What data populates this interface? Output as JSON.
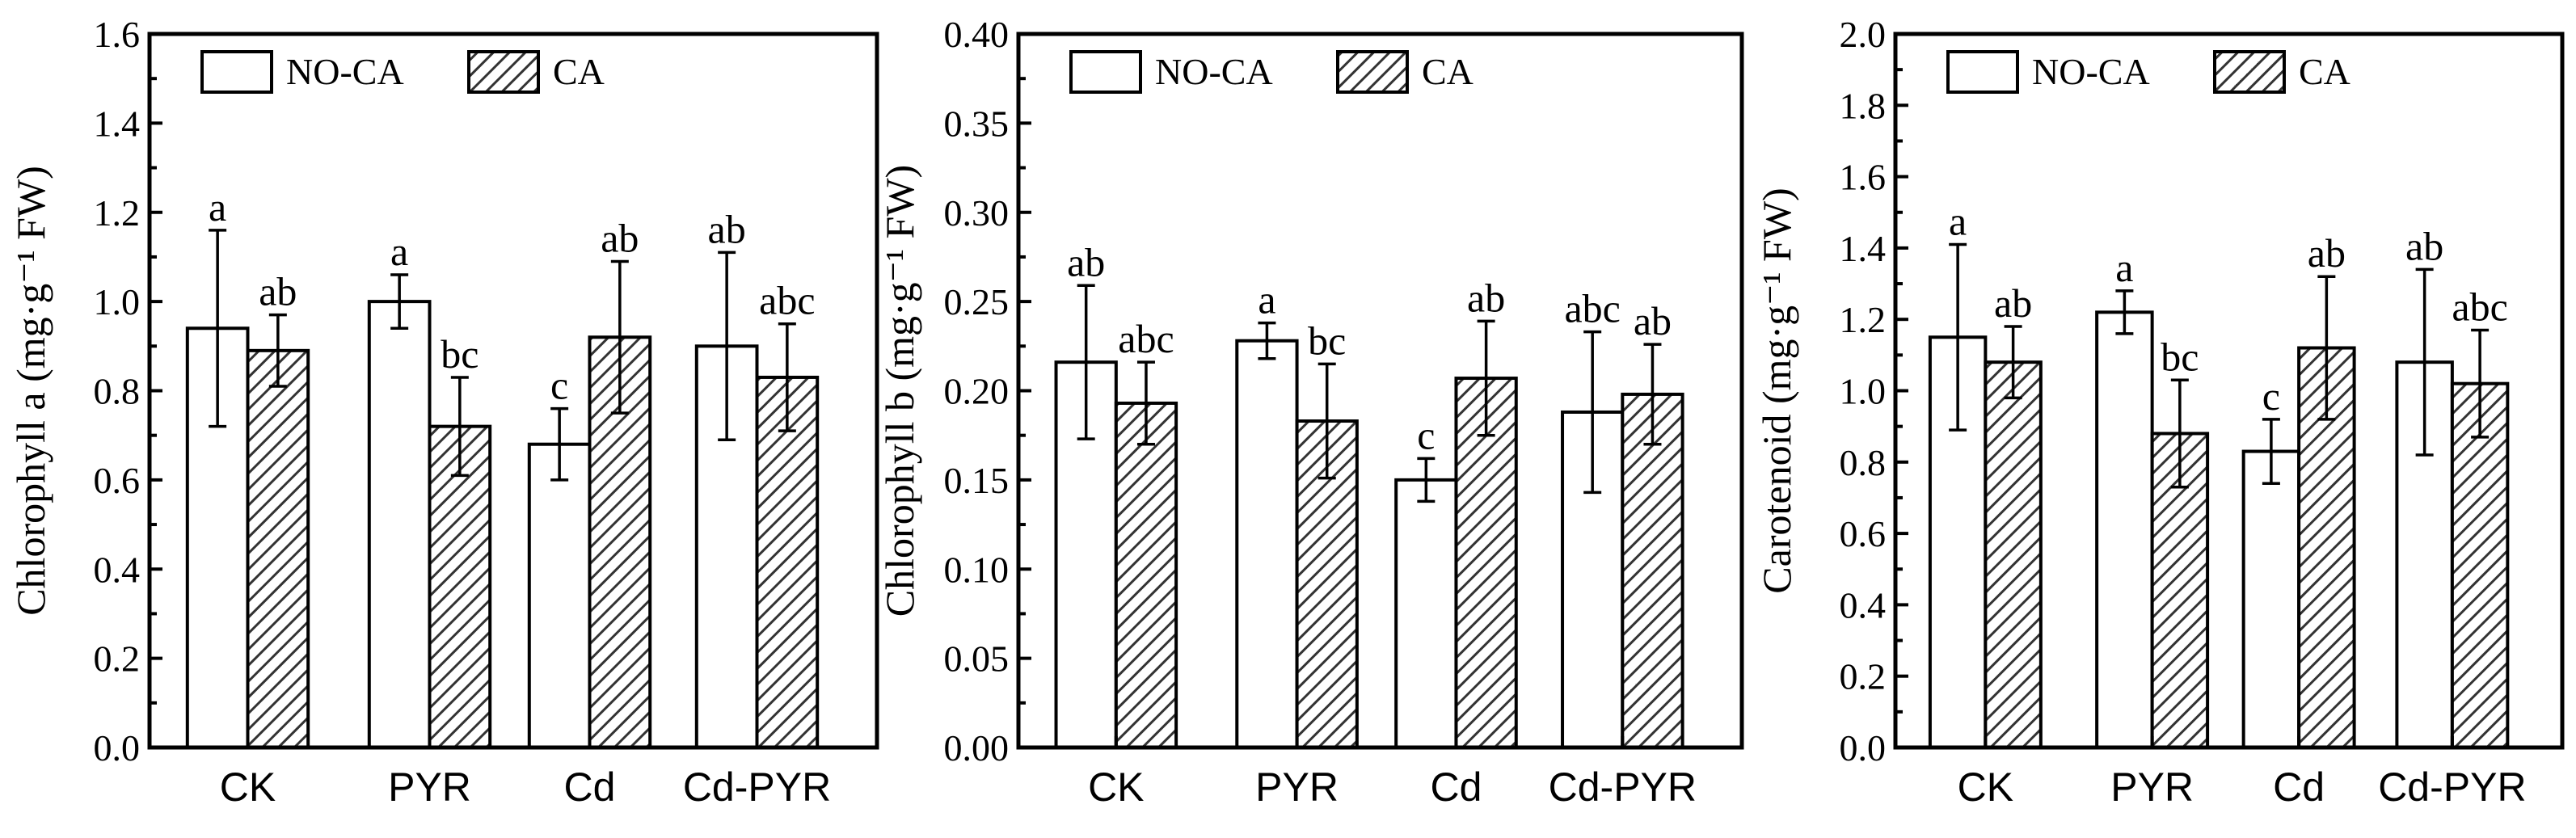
{
  "chart_data": [
    {
      "type": "bar",
      "ylabel": "Chlorophyll a (mg·g⁻¹ FW)",
      "ylim": [
        0,
        1.6
      ],
      "yticks": [
        "0.0",
        "0.2",
        "0.4",
        "0.6",
        "0.8",
        "1.0",
        "1.2",
        "1.4",
        "1.6"
      ],
      "categories": [
        "CK",
        "PYR",
        "Cd",
        "Cd-PYR"
      ],
      "legend": {
        "placement": "top-left",
        "entries": [
          "NO-CA",
          "CA"
        ]
      },
      "series": [
        {
          "name": "NO-CA",
          "values": [
            0.94,
            1.0,
            0.68,
            0.9
          ],
          "errors": [
            0.22,
            0.06,
            0.08,
            0.21
          ],
          "letters": [
            "a",
            "a",
            "c",
            "ab"
          ]
        },
        {
          "name": "CA",
          "values": [
            0.89,
            0.72,
            0.92,
            0.83
          ],
          "errors": [
            0.08,
            0.11,
            0.17,
            0.12
          ],
          "letters": [
            "ab",
            "bc",
            "ab",
            "abc"
          ]
        }
      ]
    },
    {
      "type": "bar",
      "ylabel": "Chlorophyll b (mg·g⁻¹ FW)",
      "ylim": [
        0,
        0.4
      ],
      "yticks": [
        "0.00",
        "0.05",
        "0.10",
        "0.15",
        "0.20",
        "0.25",
        "0.30",
        "0.35",
        "0.40"
      ],
      "categories": [
        "CK",
        "PYR",
        "Cd",
        "Cd-PYR"
      ],
      "legend": {
        "placement": "top-left",
        "entries": [
          "NO-CA",
          "CA"
        ]
      },
      "series": [
        {
          "name": "NO-CA",
          "values": [
            0.216,
            0.228,
            0.15,
            0.188
          ],
          "errors": [
            0.043,
            0.01,
            0.012,
            0.045
          ],
          "letters": [
            "ab",
            "a",
            "c",
            "abc"
          ]
        },
        {
          "name": "CA",
          "values": [
            0.193,
            0.183,
            0.207,
            0.198
          ],
          "errors": [
            0.023,
            0.032,
            0.032,
            0.028
          ],
          "letters": [
            "abc",
            "bc",
            "ab",
            "ab"
          ]
        }
      ]
    },
    {
      "type": "bar",
      "ylabel": "Carotenoid (mg·g⁻¹ FW)",
      "ylim": [
        0,
        2.0
      ],
      "yticks": [
        "0.0",
        "0.2",
        "0.4",
        "0.6",
        "0.8",
        "1.0",
        "1.2",
        "1.4",
        "1.6",
        "1.8",
        "2.0"
      ],
      "categories": [
        "CK",
        "PYR",
        "Cd",
        "Cd-PYR"
      ],
      "legend": {
        "placement": "top-left",
        "entries": [
          "NO-CA",
          "CA"
        ]
      },
      "series": [
        {
          "name": "NO-CA",
          "values": [
            1.15,
            1.22,
            0.83,
            1.08
          ],
          "errors": [
            0.26,
            0.06,
            0.09,
            0.26
          ],
          "letters": [
            "a",
            "a",
            "c",
            "ab"
          ]
        },
        {
          "name": "CA",
          "values": [
            1.08,
            0.88,
            1.12,
            1.02
          ],
          "errors": [
            0.1,
            0.15,
            0.2,
            0.15
          ],
          "letters": [
            "ab",
            "bc",
            "ab",
            "abc"
          ]
        }
      ]
    }
  ]
}
